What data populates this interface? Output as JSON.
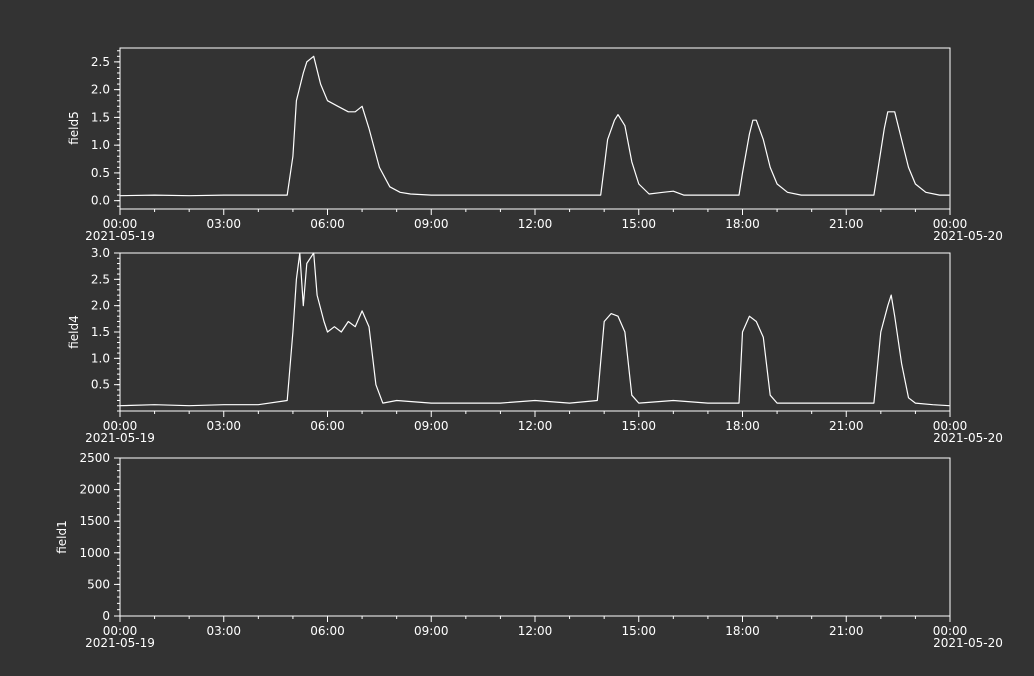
{
  "colors": {
    "background": "#333333",
    "foreground": "#ffffff"
  },
  "time_axis": {
    "tick_labels": [
      "00:00",
      "03:00",
      "06:00",
      "09:00",
      "12:00",
      "15:00",
      "18:00",
      "21:00",
      "00:00"
    ],
    "start_date": "2021-05-19",
    "end_date": "2021-05-20"
  },
  "chart_data": [
    {
      "type": "line",
      "ylabel": "field5",
      "ylim": [
        -0.15,
        2.75
      ],
      "yticks": [
        0.0,
        0.5,
        1.0,
        1.5,
        2.0,
        2.5
      ],
      "ytick_labels": [
        "0.0",
        "0.5",
        "1.0",
        "1.5",
        "2.0",
        "2.5"
      ],
      "xlim": [
        "2021-05-19 00:00",
        "2021-05-20 00:00"
      ],
      "series": [
        {
          "x": [
            "00:00",
            "01:00",
            "02:00",
            "03:00",
            "04:00",
            "04:50",
            "05:00",
            "05:06",
            "05:18",
            "05:24",
            "05:36",
            "05:48",
            "06:00",
            "06:18",
            "06:36",
            "06:48",
            "07:00",
            "07:12",
            "07:30",
            "07:48",
            "08:06",
            "08:24",
            "09:00",
            "10:00",
            "11:00",
            "12:00",
            "13:00",
            "13:54",
            "14:00",
            "14:06",
            "14:18",
            "14:24",
            "14:36",
            "14:48",
            "15:00",
            "15:18",
            "15:42",
            "16:00",
            "16:18",
            "17:00",
            "17:54",
            "18:00",
            "18:12",
            "18:18",
            "18:24",
            "18:36",
            "18:48",
            "19:00",
            "19:18",
            "19:42",
            "20:00",
            "21:00",
            "21:48",
            "21:54",
            "22:06",
            "22:12",
            "22:24",
            "22:36",
            "22:48",
            "23:00",
            "23:18",
            "23:42",
            "23:59"
          ],
          "y": [
            0.09,
            0.1,
            0.09,
            0.1,
            0.1,
            0.1,
            0.8,
            1.8,
            2.3,
            2.5,
            2.6,
            2.1,
            1.8,
            1.7,
            1.6,
            1.6,
            1.7,
            1.3,
            0.6,
            0.25,
            0.15,
            0.12,
            0.1,
            0.1,
            0.1,
            0.1,
            0.1,
            0.1,
            0.6,
            1.1,
            1.45,
            1.55,
            1.35,
            0.7,
            0.3,
            0.12,
            0.15,
            0.17,
            0.1,
            0.1,
            0.1,
            0.5,
            1.2,
            1.45,
            1.45,
            1.1,
            0.6,
            0.3,
            0.15,
            0.1,
            0.1,
            0.1,
            0.1,
            0.5,
            1.3,
            1.6,
            1.6,
            1.1,
            0.6,
            0.3,
            0.15,
            0.1,
            0.1
          ]
        }
      ]
    },
    {
      "type": "line",
      "ylabel": "field4",
      "ylim": [
        0.0,
        3.0
      ],
      "yticks": [
        0.5,
        1.0,
        1.5,
        2.0,
        2.5,
        3.0
      ],
      "ytick_labels": [
        "0.5",
        "1.0",
        "1.5",
        "2.0",
        "2.5",
        "3.0"
      ],
      "xlim": [
        "2021-05-19 00:00",
        "2021-05-20 00:00"
      ],
      "series": [
        {
          "x": [
            "00:00",
            "01:00",
            "02:00",
            "03:00",
            "04:00",
            "04:50",
            "05:00",
            "05:06",
            "05:12",
            "05:18",
            "05:24",
            "05:30",
            "05:36",
            "05:42",
            "05:54",
            "06:00",
            "06:12",
            "06:24",
            "06:36",
            "06:48",
            "07:00",
            "07:12",
            "07:24",
            "07:36",
            "08:00",
            "09:00",
            "10:00",
            "11:00",
            "12:00",
            "13:00",
            "13:48",
            "14:00",
            "14:12",
            "14:24",
            "14:36",
            "14:48",
            "15:00",
            "16:00",
            "17:00",
            "17:54",
            "18:00",
            "18:12",
            "18:24",
            "18:36",
            "18:48",
            "19:00",
            "20:00",
            "21:00",
            "21:48",
            "22:00",
            "22:12",
            "22:18",
            "22:24",
            "22:36",
            "22:48",
            "23:00",
            "23:30",
            "23:59"
          ],
          "y": [
            0.1,
            0.12,
            0.1,
            0.12,
            0.12,
            0.2,
            1.5,
            2.5,
            3.0,
            2.0,
            2.8,
            2.9,
            3.0,
            2.2,
            1.7,
            1.5,
            1.6,
            1.5,
            1.7,
            1.6,
            1.9,
            1.6,
            0.5,
            0.15,
            0.2,
            0.15,
            0.15,
            0.15,
            0.2,
            0.15,
            0.2,
            1.7,
            1.85,
            1.8,
            1.5,
            0.3,
            0.15,
            0.2,
            0.15,
            0.15,
            1.5,
            1.8,
            1.7,
            1.4,
            0.3,
            0.15,
            0.15,
            0.15,
            0.15,
            1.5,
            2.0,
            2.2,
            1.8,
            0.9,
            0.25,
            0.15,
            0.12,
            0.1
          ]
        }
      ]
    },
    {
      "type": "line",
      "ylabel": "field1",
      "ylim": [
        0,
        2500
      ],
      "yticks": [
        0,
        500,
        1000,
        1500,
        2000,
        2500
      ],
      "ytick_labels": [
        "0",
        "500",
        "1000",
        "1500",
        "2000",
        "2500"
      ],
      "xlim": [
        "2021-05-19 00:00",
        "2021-05-20 00:00"
      ],
      "series": []
    }
  ]
}
